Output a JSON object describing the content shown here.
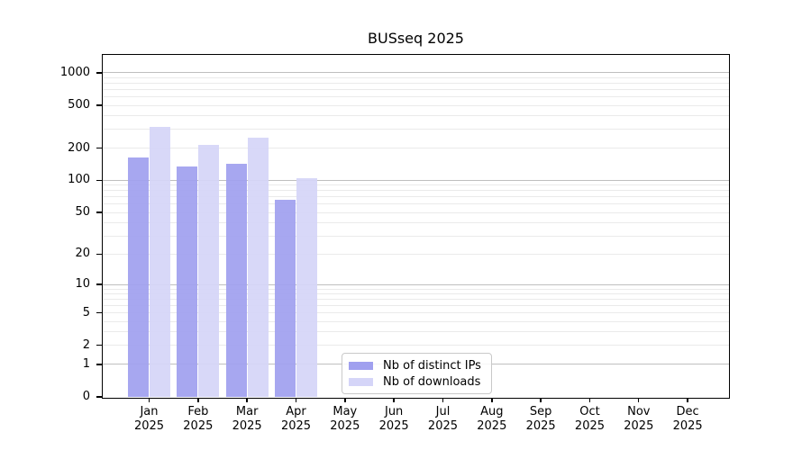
{
  "chart_data": {
    "type": "bar",
    "title": "BUSseq 2025",
    "year_label": "2025",
    "categories": [
      "Jan",
      "Feb",
      "Mar",
      "Apr",
      "May",
      "Jun",
      "Jul",
      "Aug",
      "Sep",
      "Oct",
      "Nov",
      "Dec"
    ],
    "series": [
      {
        "name": "Nb of distinct IPs",
        "color": "#a0a0ef",
        "values": [
          165,
          135,
          143,
          66,
          null,
          null,
          null,
          null,
          null,
          null,
          null,
          null
        ]
      },
      {
        "name": "Nb of downloads",
        "color": "#d5d5f8",
        "values": [
          318,
          215,
          250,
          105,
          null,
          null,
          null,
          null,
          null,
          null,
          null,
          null
        ]
      }
    ],
    "y_axis": {
      "scale": "log10(1+x)",
      "tick_values": [
        0,
        1,
        2,
        5,
        10,
        20,
        50,
        100,
        200,
        500,
        1000
      ],
      "range": [
        0,
        1400
      ]
    },
    "grid": {
      "major_values": [
        1,
        10,
        100,
        1000
      ],
      "minor_values": [
        2,
        3,
        4,
        5,
        6,
        7,
        8,
        9,
        20,
        30,
        40,
        50,
        60,
        70,
        80,
        90,
        200,
        300,
        400,
        500,
        600,
        700,
        800,
        900
      ],
      "major_color": "#bfbfbf",
      "minor_color": "#eaeaea"
    },
    "legend_position": "bottom-center",
    "axis_color": "#000000",
    "background_color": "#ffffff"
  }
}
